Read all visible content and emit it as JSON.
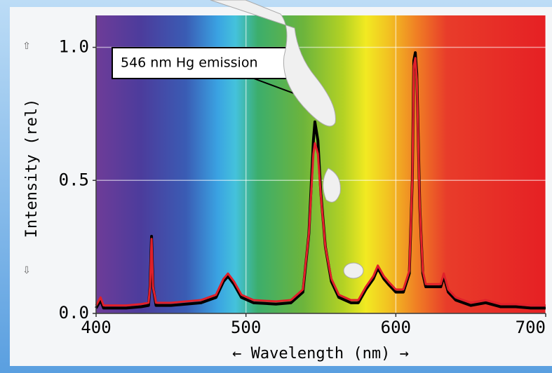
{
  "chart_data": {
    "type": "line",
    "annotation": "546 nm Hg emission",
    "x_label": "← Wavelength (nm) →",
    "y_label": "Intensity (rel)",
    "y_axis_markers": [
      "⇧",
      "⇩"
    ],
    "xlim": [
      400,
      700
    ],
    "ylim": [
      0,
      1.12
    ],
    "xticks": [
      400,
      500,
      600,
      700
    ],
    "yticks": [
      {
        "value": 0,
        "label": "0.0"
      },
      0.5,
      {
        "value": 1,
        "label": "1.0"
      }
    ],
    "grid": true,
    "x": [
      400,
      403,
      405,
      410,
      420,
      430,
      435,
      436,
      437,
      438,
      440,
      450,
      460,
      470,
      480,
      485,
      488,
      492,
      497,
      505,
      520,
      530,
      538,
      542,
      545,
      546,
      548,
      550,
      553,
      557,
      562,
      570,
      575,
      580,
      585,
      588,
      590,
      592,
      595,
      600,
      605,
      609,
      611,
      612,
      613,
      614,
      616,
      618,
      620,
      625,
      630,
      632,
      635,
      640,
      650,
      660,
      670,
      680,
      690,
      700
    ],
    "series": [
      {
        "color": "#000000",
        "values": [
          0.02,
          0.05,
          0.02,
          0.02,
          0.02,
          0.025,
          0.03,
          0.1,
          0.29,
          0.1,
          0.03,
          0.03,
          0.035,
          0.04,
          0.06,
          0.12,
          0.14,
          0.11,
          0.06,
          0.04,
          0.035,
          0.04,
          0.08,
          0.3,
          0.65,
          0.72,
          0.65,
          0.45,
          0.25,
          0.12,
          0.06,
          0.04,
          0.04,
          0.09,
          0.13,
          0.17,
          0.15,
          0.13,
          0.11,
          0.08,
          0.08,
          0.15,
          0.5,
          0.95,
          0.98,
          0.9,
          0.4,
          0.15,
          0.1,
          0.1,
          0.1,
          0.14,
          0.08,
          0.05,
          0.03,
          0.04,
          0.025,
          0.025,
          0.02,
          0.02
        ]
      },
      {
        "color": "#e0202a",
        "values": [
          0.03,
          0.06,
          0.03,
          0.03,
          0.03,
          0.035,
          0.04,
          0.1,
          0.28,
          0.1,
          0.04,
          0.04,
          0.045,
          0.05,
          0.07,
          0.13,
          0.15,
          0.12,
          0.07,
          0.05,
          0.045,
          0.05,
          0.09,
          0.3,
          0.6,
          0.64,
          0.6,
          0.44,
          0.25,
          0.13,
          0.07,
          0.05,
          0.05,
          0.1,
          0.14,
          0.18,
          0.16,
          0.14,
          0.12,
          0.09,
          0.09,
          0.16,
          0.5,
          0.93,
          0.96,
          0.88,
          0.4,
          0.16,
          0.11,
          0.11,
          0.11,
          0.15,
          0.09,
          0.06,
          0.04,
          0.05,
          0.035,
          0.035,
          0.03,
          0.03
        ]
      }
    ]
  }
}
